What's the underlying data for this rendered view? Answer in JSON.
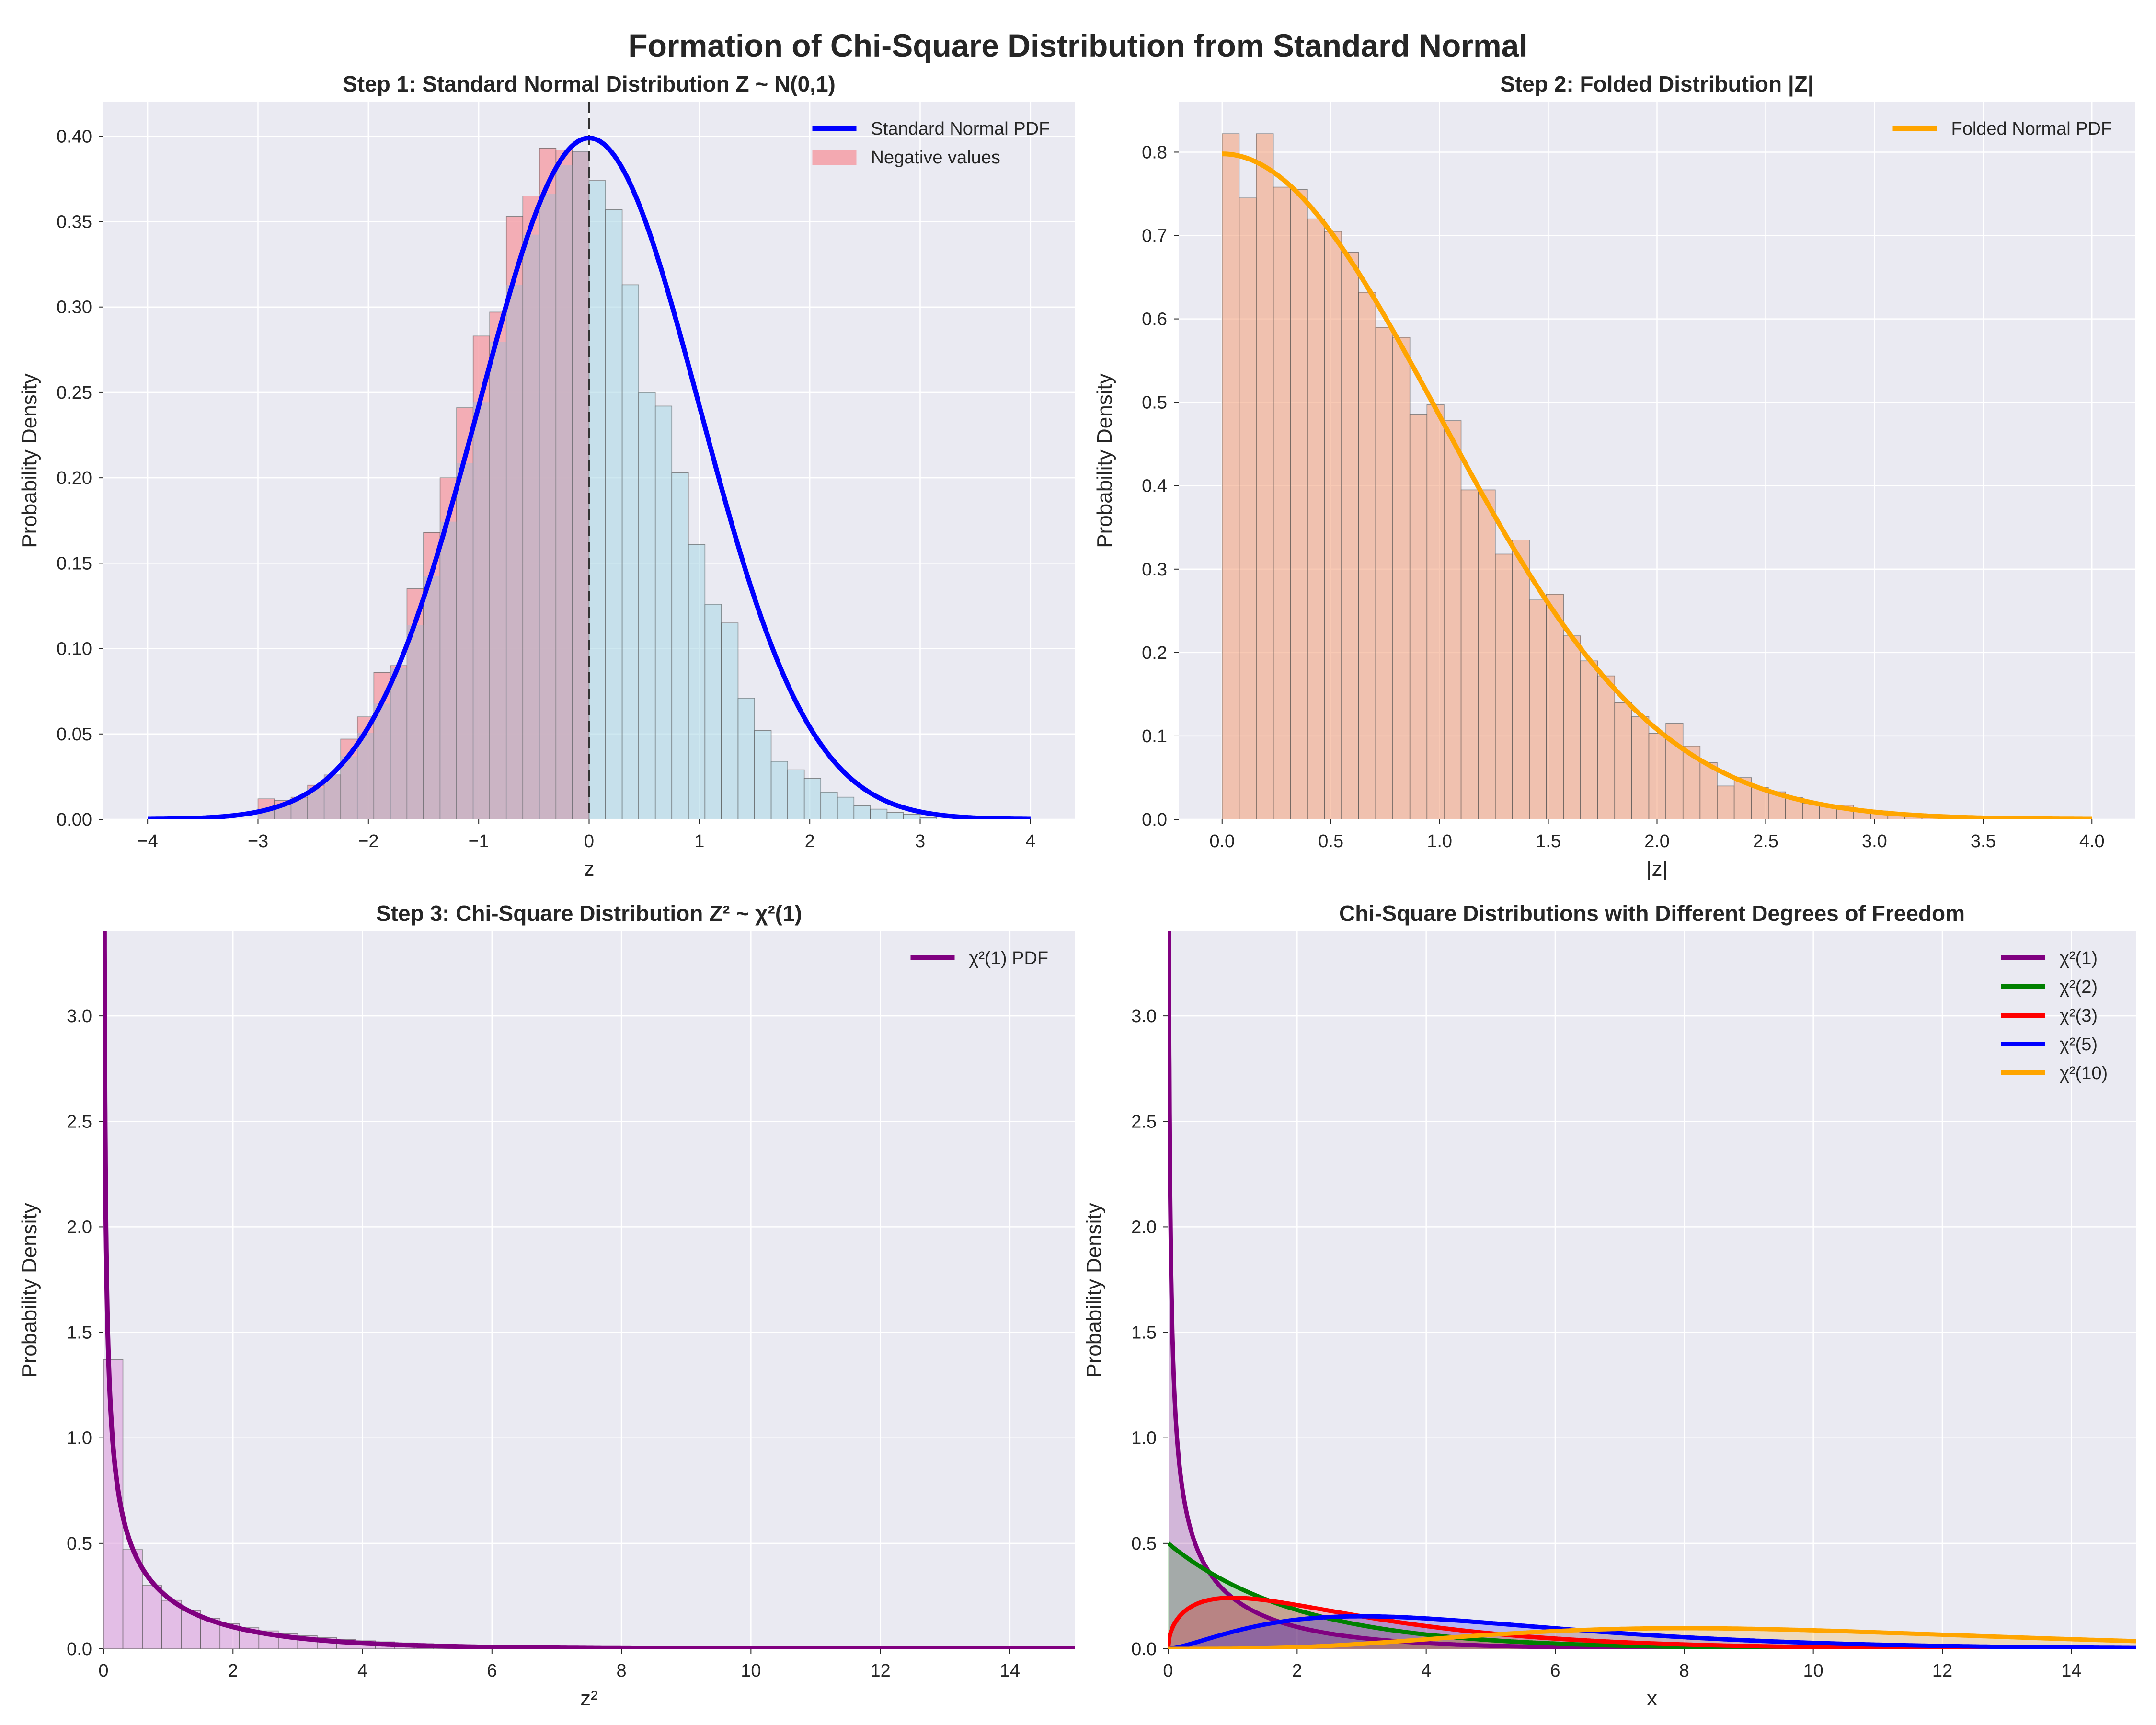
{
  "figure_title": "Formation of Chi-Square Distribution from Standard Normal",
  "colors": {
    "background": "#eaeaf2",
    "grid": "#ffffff",
    "normal_curve": "#0000ff",
    "negative_fill": "#f4a2aa",
    "positive_hist": "#add8e6",
    "folded_hist": "#f4a582",
    "folded_curve": "#ffa500",
    "chi1": "#800080",
    "chi2": "#008000",
    "chi3": "#ff0000",
    "chi5": "#0000ff",
    "chi10": "#ffa500"
  },
  "chart_data": [
    {
      "id": "p1",
      "type": "bar",
      "title": "Step 1: Standard Normal Distribution Z ~ N(0,1)",
      "xlabel": "z",
      "ylabel": "Probability Density",
      "xlim": [
        -4.4,
        4.4
      ],
      "ylim": [
        0,
        0.42
      ],
      "xticks": [
        -4,
        -3,
        -2,
        -1,
        0,
        1,
        2,
        3,
        4
      ],
      "xtick_labels": [
        "−4",
        "−3",
        "−2",
        "−1",
        "0",
        "1",
        "2",
        "3",
        "4"
      ],
      "yticks": [
        0,
        0.05,
        0.1,
        0.15,
        0.2,
        0.25,
        0.3,
        0.35,
        0.4
      ],
      "ytick_labels": [
        "0.00",
        "0.05",
        "0.10",
        "0.15",
        "0.20",
        "0.25",
        "0.30",
        "0.35",
        "0.40"
      ],
      "grid": true,
      "legend": {
        "placement": "top-right",
        "entries": [
          {
            "label": "Standard Normal PDF",
            "kind": "line",
            "color": "#0000ff"
          },
          {
            "label": "Negative values",
            "kind": "patch",
            "color": "#f4a2aa"
          }
        ]
      },
      "vline": 0,
      "histogram": {
        "bin_start": -3.0,
        "bin_width": 0.15,
        "values": [
          0.012,
          0.011,
          0.013,
          0.02,
          0.026,
          0.047,
          0.06,
          0.086,
          0.09,
          0.135,
          0.168,
          0.2,
          0.241,
          0.283,
          0.297,
          0.353,
          0.365,
          0.393,
          0.392,
          0.391,
          0.374,
          0.357,
          0.313,
          0.25,
          0.242,
          0.203,
          0.161,
          0.126,
          0.115,
          0.071,
          0.052,
          0.034,
          0.029,
          0.024,
          0.016,
          0.013,
          0.008,
          0.006,
          0.004,
          0.003,
          0.001
        ]
      },
      "curve": {
        "name": "Standard Normal PDF",
        "function": "normal",
        "x_range": [
          -4,
          4
        ]
      }
    },
    {
      "id": "p2",
      "type": "bar",
      "title": "Step 2: Folded Distribution |Z|",
      "xlabel": "|z|",
      "ylabel": "Probability Density",
      "xlim": [
        -0.2,
        4.2
      ],
      "ylim": [
        0,
        0.86
      ],
      "xticks": [
        0,
        0.5,
        1,
        1.5,
        2,
        2.5,
        3,
        3.5,
        4
      ],
      "xtick_labels": [
        "0.0",
        "0.5",
        "1.0",
        "1.5",
        "2.0",
        "2.5",
        "3.0",
        "3.5",
        "4.0"
      ],
      "yticks": [
        0,
        0.1,
        0.2,
        0.3,
        0.4,
        0.5,
        0.6,
        0.7,
        0.8
      ],
      "ytick_labels": [
        "0.0",
        "0.1",
        "0.2",
        "0.3",
        "0.4",
        "0.5",
        "0.6",
        "0.7",
        "0.8"
      ],
      "grid": true,
      "legend": {
        "placement": "top-right",
        "entries": [
          {
            "label": "Folded Normal PDF",
            "kind": "line",
            "color": "#ffa500"
          }
        ]
      },
      "histogram": {
        "bin_start": 0.0,
        "bin_width": 0.0785,
        "values": [
          0.822,
          0.745,
          0.822,
          0.758,
          0.755,
          0.72,
          0.705,
          0.68,
          0.632,
          0.59,
          0.578,
          0.485,
          0.497,
          0.478,
          0.395,
          0.395,
          0.318,
          0.335,
          0.263,
          0.27,
          0.22,
          0.19,
          0.172,
          0.14,
          0.123,
          0.103,
          0.115,
          0.088,
          0.068,
          0.04,
          0.05,
          0.038,
          0.033,
          0.026,
          0.019,
          0.016,
          0.017,
          0.01,
          0.01,
          0.005,
          0.004,
          0.003,
          0.002,
          0.001
        ]
      },
      "curve": {
        "name": "Folded Normal PDF",
        "function": "folded_normal",
        "x_range": [
          0,
          4
        ]
      }
    },
    {
      "id": "p3",
      "type": "bar",
      "title": "Step 3: Chi-Square Distribution Z² ~ χ²(1)",
      "xlabel": "z²",
      "ylabel": "Probability Density",
      "xlim": [
        0,
        15
      ],
      "ylim": [
        0,
        3.4
      ],
      "xticks": [
        0,
        2,
        4,
        6,
        8,
        10,
        12,
        14
      ],
      "xtick_labels": [
        "0",
        "2",
        "4",
        "6",
        "8",
        "10",
        "12",
        "14"
      ],
      "yticks": [
        0,
        0.5,
        1,
        1.5,
        2,
        2.5,
        3
      ],
      "ytick_labels": [
        "0.0",
        "0.5",
        "1.0",
        "1.5",
        "2.0",
        "2.5",
        "3.0"
      ],
      "grid": true,
      "legend": {
        "placement": "top-right",
        "entries": [
          {
            "label": "χ²(1) PDF",
            "kind": "line",
            "color": "#800080"
          }
        ]
      },
      "histogram": {
        "bin_start": 0.0,
        "bin_width": 0.3,
        "values": [
          1.37,
          0.47,
          0.3,
          0.23,
          0.18,
          0.145,
          0.12,
          0.1,
          0.085,
          0.072,
          0.062,
          0.053,
          0.045,
          0.038,
          0.033,
          0.028,
          0.024,
          0.02,
          0.017,
          0.015,
          0.013,
          0.011,
          0.009,
          0.008,
          0.007,
          0.006,
          0.005,
          0.004,
          0.0035,
          0.003,
          0.0025,
          0.002,
          0.0017,
          0.0014,
          0.0012,
          0.001,
          0.0008,
          0.0007,
          0.0006,
          0.0005
        ]
      },
      "curve": {
        "name": "χ²(1) PDF",
        "function": "chi2",
        "df": 1,
        "x_range": [
          0.0115,
          15
        ]
      }
    },
    {
      "id": "p4",
      "type": "line",
      "title": "Chi-Square Distributions with Different Degrees of Freedom",
      "xlabel": "x",
      "ylabel": "Probability Density",
      "xlim": [
        0,
        15
      ],
      "ylim": [
        0,
        3.4
      ],
      "xticks": [
        0,
        2,
        4,
        6,
        8,
        10,
        12,
        14
      ],
      "xtick_labels": [
        "0",
        "2",
        "4",
        "6",
        "8",
        "10",
        "12",
        "14"
      ],
      "yticks": [
        0,
        0.5,
        1,
        1.5,
        2,
        2.5,
        3
      ],
      "ytick_labels": [
        "0.0",
        "0.5",
        "1.0",
        "1.5",
        "2.0",
        "2.5",
        "3.0"
      ],
      "grid": true,
      "legend": {
        "placement": "top-right",
        "entries": [
          {
            "label": "χ²(1)",
            "kind": "line",
            "color": "#800080"
          },
          {
            "label": "χ²(2)",
            "kind": "line",
            "color": "#008000"
          },
          {
            "label": "χ²(3)",
            "kind": "line",
            "color": "#ff0000"
          },
          {
            "label": "χ²(5)",
            "kind": "line",
            "color": "#0000ff"
          },
          {
            "label": "χ²(10)",
            "kind": "line",
            "color": "#ffa500"
          }
        ]
      },
      "series": [
        {
          "name": "χ²(1)",
          "df": 1,
          "color": "#800080",
          "x_range": [
            0.0115,
            15
          ]
        },
        {
          "name": "χ²(2)",
          "df": 2,
          "color": "#008000",
          "x_range": [
            0,
            15
          ]
        },
        {
          "name": "χ²(3)",
          "df": 3,
          "color": "#ff0000",
          "x_range": [
            0,
            15
          ]
        },
        {
          "name": "χ²(5)",
          "df": 5,
          "color": "#0000ff",
          "x_range": [
            0,
            15
          ]
        },
        {
          "name": "χ²(10)",
          "df": 10,
          "color": "#ffa500",
          "x_range": [
            0,
            15
          ]
        }
      ]
    }
  ]
}
